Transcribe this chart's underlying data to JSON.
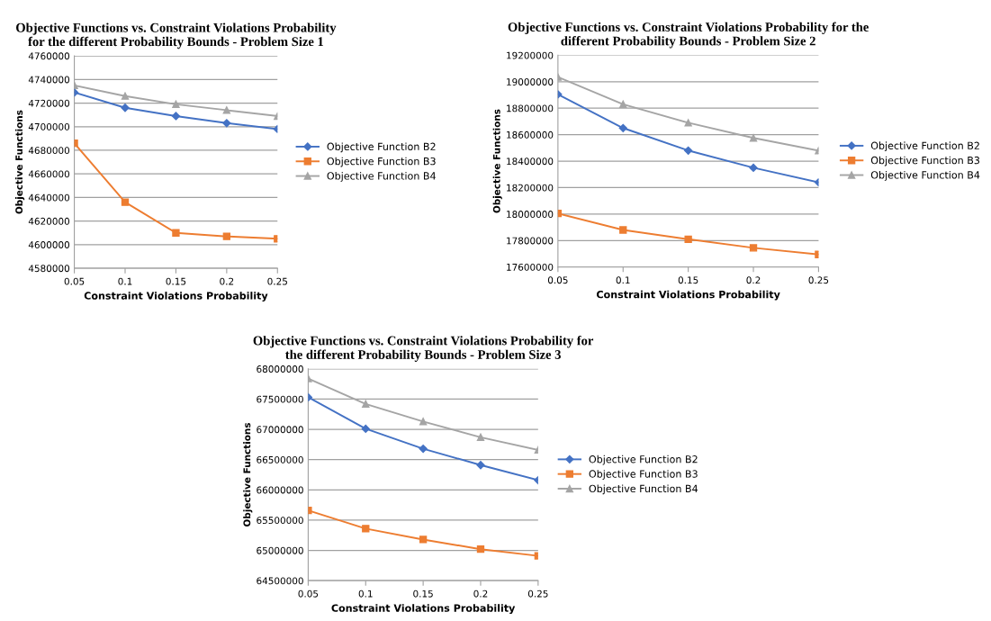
{
  "chart_data": [
    {
      "type": "line",
      "title": "Objective Functions vs. Constraint Violations Probability\nfor the different Probability Bounds - Problem Size 1",
      "xlabel": "Constraint Violations Probability",
      "ylabel": "Objective Functions",
      "categories": [
        "0.05",
        "0.1",
        "0.15",
        "0.2",
        "0.25"
      ],
      "series": [
        {
          "name": "Objective Function B2",
          "color": "#4472c4",
          "marker": "diamond",
          "values": [
            4729000,
            4716000,
            4709000,
            4703000,
            4698000
          ]
        },
        {
          "name": "Objective Function B3",
          "color": "#ed7d31",
          "marker": "square",
          "values": [
            4686000,
            4636000,
            4610000,
            4607000,
            4605000
          ]
        },
        {
          "name": "Objective Function B4",
          "color": "#a5a5a5",
          "marker": "triangle",
          "values": [
            4735000,
            4726000,
            4719000,
            4714000,
            4709000
          ]
        }
      ],
      "ylim": [
        4580000,
        4760000
      ],
      "yticks": [
        4580000,
        4600000,
        4620000,
        4640000,
        4660000,
        4680000,
        4700000,
        4720000,
        4740000,
        4760000
      ],
      "grid": "y",
      "legend": "right"
    },
    {
      "type": "line",
      "title": "Objective Functions vs. Constraint Violations Probability for the\ndifferent Probability Bounds - Problem Size 2",
      "xlabel": "Constraint Violations Probability",
      "ylabel": "Objective Functions",
      "categories": [
        "0.05",
        "0.1",
        "0.15",
        "0.2",
        "0.25"
      ],
      "series": [
        {
          "name": "Objective Function B2",
          "color": "#4472c4",
          "marker": "diamond",
          "values": [
            18905000,
            18650000,
            18480000,
            18350000,
            18240000
          ]
        },
        {
          "name": "Objective Function B3",
          "color": "#ed7d31",
          "marker": "square",
          "values": [
            18005000,
            17880000,
            17810000,
            17745000,
            17695000
          ]
        },
        {
          "name": "Objective Function B4",
          "color": "#a5a5a5",
          "marker": "triangle",
          "values": [
            19035000,
            18830000,
            18690000,
            18575000,
            18480000
          ]
        }
      ],
      "ylim": [
        17600000,
        19200000
      ],
      "yticks": [
        17600000,
        17800000,
        18000000,
        18200000,
        18400000,
        18600000,
        18800000,
        19000000,
        19200000
      ],
      "grid": "y",
      "legend": "right"
    },
    {
      "type": "line",
      "title": "Objective Functions vs. Constraint Violations Probability for\nthe different Probability Bounds - Problem Size 3",
      "xlabel": "Constraint Violations Probability",
      "ylabel": "Objective Functions",
      "categories": [
        "0.05",
        "0.1",
        "0.15",
        "0.2",
        "0.25"
      ],
      "series": [
        {
          "name": "Objective Function B2",
          "color": "#4472c4",
          "marker": "diamond",
          "values": [
            67530000,
            67010000,
            66680000,
            66410000,
            66160000
          ]
        },
        {
          "name": "Objective Function B3",
          "color": "#ed7d31",
          "marker": "square",
          "values": [
            65660000,
            65360000,
            65180000,
            65020000,
            64910000
          ]
        },
        {
          "name": "Objective Function B4",
          "color": "#a5a5a5",
          "marker": "triangle",
          "values": [
            67840000,
            67420000,
            67130000,
            66870000,
            66660000
          ]
        }
      ],
      "ylim": [
        64500000,
        68000000
      ],
      "yticks": [
        64500000,
        65000000,
        65500000,
        66000000,
        66500000,
        67000000,
        67500000,
        68000000
      ],
      "grid": "y",
      "legend": "right"
    }
  ]
}
